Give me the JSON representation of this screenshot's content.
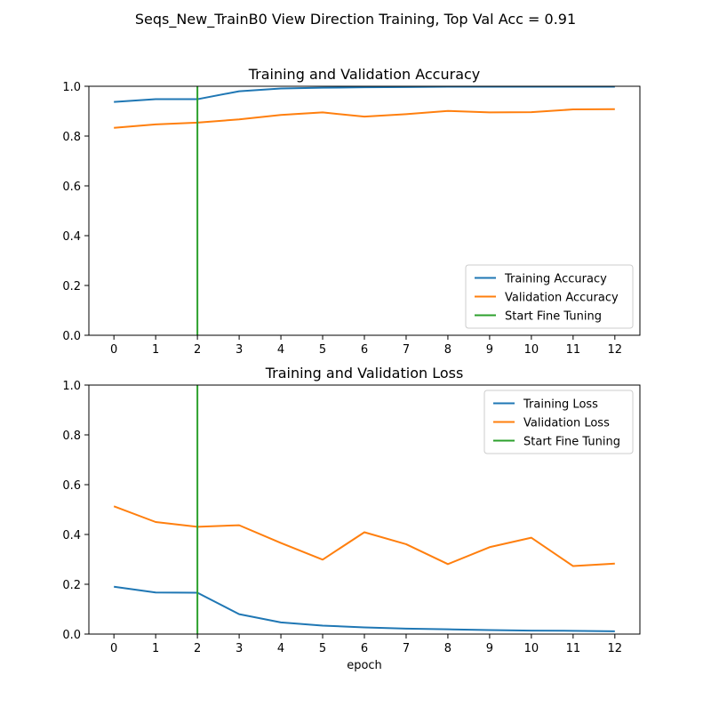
{
  "suptitle": "Seqs_New_TrainB0 View Direction Training, Top Val Acc = 0.91",
  "colors": {
    "blue": "#1f77b4",
    "orange": "#ff7f0e",
    "green": "#2ca02c"
  },
  "chart_data": [
    {
      "type": "line",
      "title": "Training and Validation Accuracy",
      "xlabel": "",
      "ylabel": "",
      "x": [
        0,
        1,
        2,
        3,
        4,
        5,
        6,
        7,
        8,
        9,
        10,
        11,
        12
      ],
      "xlim": [
        -0.6,
        12.6
      ],
      "ylim": [
        0.0,
        1.0
      ],
      "xticks": [
        "0",
        "1",
        "2",
        "3",
        "4",
        "5",
        "6",
        "7",
        "8",
        "9",
        "10",
        "11",
        "12"
      ],
      "yticks": [
        "0.0",
        "0.2",
        "0.4",
        "0.6",
        "0.8",
        "1.0"
      ],
      "grid": false,
      "legend_position": "lower right",
      "series": [
        {
          "name": "Training Accuracy",
          "color": "#1f77b4",
          "values": [
            0.937,
            0.948,
            0.948,
            0.98,
            0.991,
            0.994,
            0.996,
            0.997,
            0.998,
            0.998,
            0.998,
            0.998,
            0.998
          ]
        },
        {
          "name": "Validation Accuracy",
          "color": "#ff7f0e",
          "values": [
            0.833,
            0.847,
            0.854,
            0.867,
            0.885,
            0.895,
            0.878,
            0.888,
            0.901,
            0.895,
            0.896,
            0.907,
            0.908
          ]
        }
      ],
      "vline": {
        "name": "Start Fine Tuning",
        "x": 2,
        "color": "#2ca02c"
      }
    },
    {
      "type": "line",
      "title": "Training and Validation Loss",
      "xlabel": "epoch",
      "ylabel": "",
      "x": [
        0,
        1,
        2,
        3,
        4,
        5,
        6,
        7,
        8,
        9,
        10,
        11,
        12
      ],
      "xlim": [
        -0.6,
        12.6
      ],
      "ylim": [
        0.0,
        1.0
      ],
      "xticks": [
        "0",
        "1",
        "2",
        "3",
        "4",
        "5",
        "6",
        "7",
        "8",
        "9",
        "10",
        "11",
        "12"
      ],
      "yticks": [
        "0.0",
        "0.2",
        "0.4",
        "0.6",
        "0.8",
        "1.0"
      ],
      "grid": false,
      "legend_position": "upper right",
      "series": [
        {
          "name": "Training Loss",
          "color": "#1f77b4",
          "values": [
            0.19,
            0.167,
            0.166,
            0.08,
            0.047,
            0.034,
            0.027,
            0.022,
            0.019,
            0.016,
            0.014,
            0.013,
            0.011
          ]
        },
        {
          "name": "Validation Loss",
          "color": "#ff7f0e",
          "values": [
            0.513,
            0.45,
            0.431,
            0.437,
            0.366,
            0.299,
            0.409,
            0.361,
            0.281,
            0.349,
            0.387,
            0.273,
            0.283
          ]
        }
      ],
      "vline": {
        "name": "Start Fine Tuning",
        "x": 2,
        "color": "#2ca02c"
      }
    }
  ]
}
